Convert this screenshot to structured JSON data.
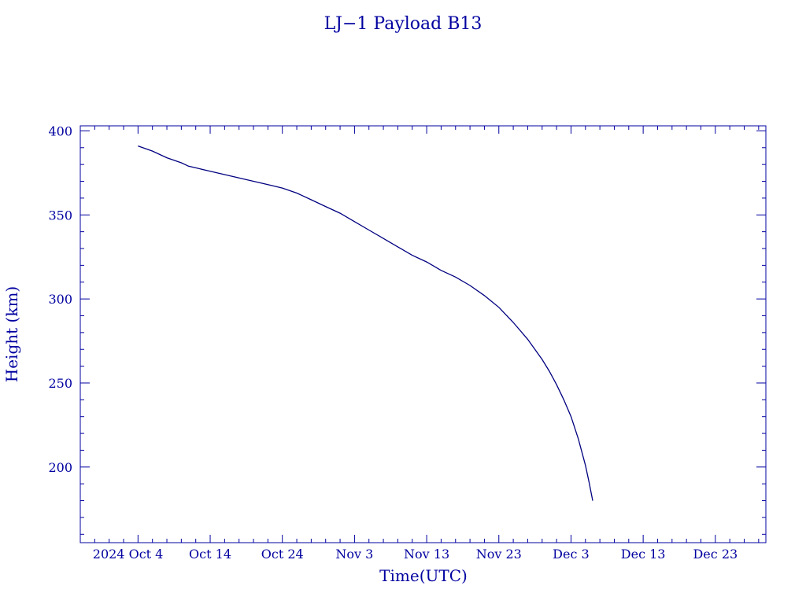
{
  "chart_data": {
    "type": "line",
    "title": "LJ−1 Payload B13",
    "xlabel": "Time(UTC)",
    "ylabel": "Height (km)",
    "xlim": [
      "2024-09-26",
      "2024-12-30"
    ],
    "ylim": [
      155,
      403
    ],
    "grid": false,
    "x_ticks": [
      {
        "date": "2024-10-04",
        "label": "2024 Oct  4"
      },
      {
        "date": "2024-10-14",
        "label": "Oct 14"
      },
      {
        "date": "2024-10-24",
        "label": "Oct 24"
      },
      {
        "date": "2024-11-03",
        "label": "Nov  3"
      },
      {
        "date": "2024-11-13",
        "label": "Nov 13"
      },
      {
        "date": "2024-11-23",
        "label": "Nov 23"
      },
      {
        "date": "2024-12-03",
        "label": "Dec  3"
      },
      {
        "date": "2024-12-13",
        "label": "Dec 13"
      },
      {
        "date": "2024-12-23",
        "label": "Dec 23"
      }
    ],
    "x_minor_step_days": 2,
    "y_ticks": [
      200,
      250,
      300,
      350,
      400
    ],
    "y_minor_step": 10,
    "series": [
      {
        "x": [
          "2024-10-04",
          "2024-10-06",
          "2024-10-08",
          "2024-10-10",
          "2024-10-11",
          "2024-10-12",
          "2024-10-14",
          "2024-10-16",
          "2024-10-18",
          "2024-10-20",
          "2024-10-22",
          "2024-10-24",
          "2024-10-26",
          "2024-10-28",
          "2024-10-30",
          "2024-11-01",
          "2024-11-03",
          "2024-11-05",
          "2024-11-07",
          "2024-11-09",
          "2024-11-11",
          "2024-11-13",
          "2024-11-15",
          "2024-11-17",
          "2024-11-19",
          "2024-11-21",
          "2024-11-23",
          "2024-11-25",
          "2024-11-27",
          "2024-11-29",
          "2024-11-30",
          "2024-12-01",
          "2024-12-02",
          "2024-12-03",
          "2024-12-04",
          "2024-12-04T12:00",
          "2024-12-05",
          "2024-12-05T12:00",
          "2024-12-06"
        ],
        "y": [
          391,
          388,
          384,
          381,
          379,
          378,
          376,
          374,
          372,
          370,
          368,
          366,
          363,
          359,
          355,
          351,
          346,
          341,
          336,
          331,
          326,
          322,
          317,
          313,
          308,
          302,
          295,
          286,
          276,
          264,
          257,
          249,
          240,
          230,
          217,
          209,
          201,
          191,
          180
        ]
      }
    ]
  }
}
